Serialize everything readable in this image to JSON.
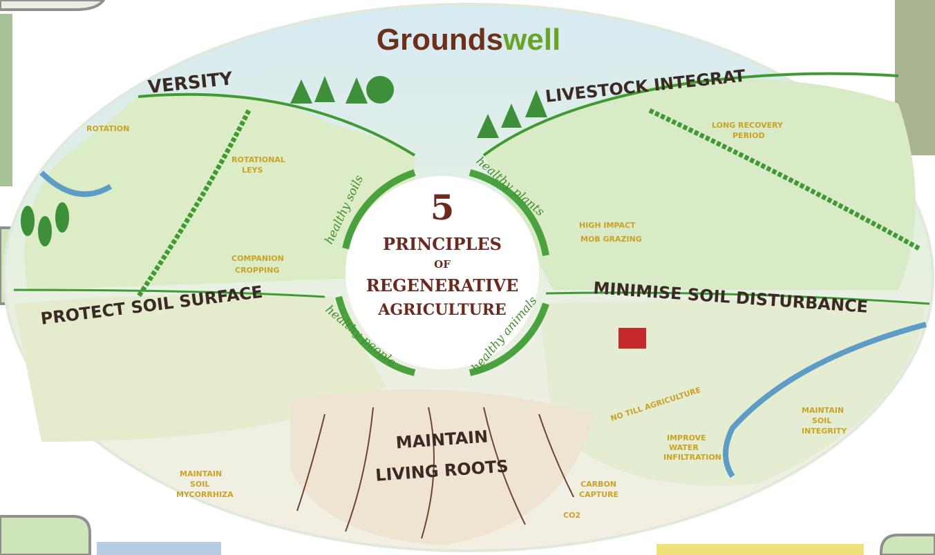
{
  "title": {
    "brand": "Grounds",
    "accent": "well"
  },
  "center": {
    "number": "5",
    "lines": [
      "PRINCIPLES",
      "OF",
      "REGENERATIVE",
      "AGRICULTURE"
    ]
  },
  "cycle": [
    "healthy soils",
    "healthy plants",
    "healthy animals",
    "healthy people"
  ],
  "principles": [
    "VERSITY",
    "LIVESTOCK INTEGRAT",
    "PROTECT SOIL SURFACE",
    "MINIMISE SOIL DISTURBANCE",
    "MAINTAIN",
    "LIVING ROOTS"
  ],
  "notes": [
    "ROTATION",
    "ROTATIONAL",
    "LEYS",
    "COMPANION",
    "CROPPING",
    "LONG RECOVERY",
    "PERIOD",
    "HIGH IMPACT",
    "MOB GRAZING",
    "NO TILL AGRICULTURE",
    "MAINTAIN",
    "SOIL",
    "INTEGRITY",
    "IMPROVE",
    "WATER",
    "INFILTRATION",
    "CARBON",
    "CAPTURE",
    "MAINTAIN",
    "SOIL",
    "MYCORRHIZA",
    "CO2"
  ]
}
